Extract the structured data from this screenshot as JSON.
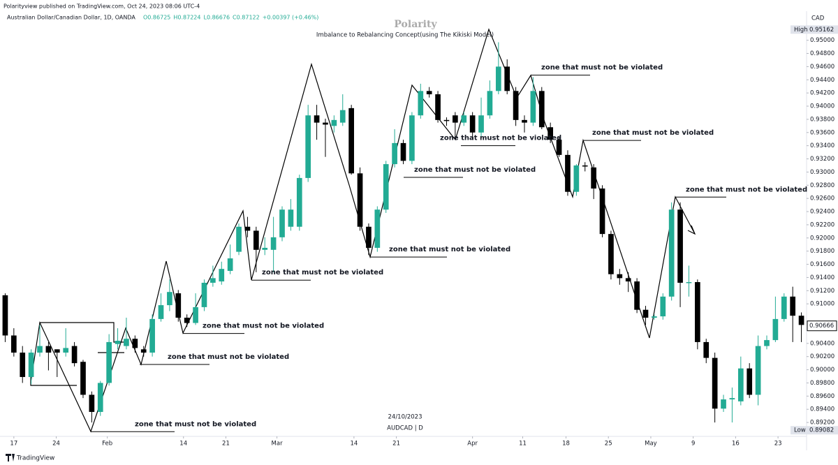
{
  "header": {
    "published": "Polarityview published on TradingView.com, Oct 24, 2023 08:06 UTC-4",
    "symbol": "Australian Dollar/Canadian Dollar, 1D, OANDA",
    "ohlc_readout": [
      "O0.86725",
      "H0.87224",
      "L0.86676",
      "C0.87122",
      "+0.00397 (+0.46%)"
    ]
  },
  "footer": {
    "brand": "TradingView"
  },
  "chart_data": {
    "type": "candlestick",
    "title": "Polarity",
    "subtitle": "Imbalance to Rebalancing Concept(using The Kikiski Model)",
    "date_label": "24/10/2023",
    "symbol_label": "AUDCAD | D",
    "currency": "CAD",
    "up_color": "#22ab94",
    "down_color": "#000000",
    "xlim": [
      -0.6,
      92.6
    ],
    "ylim": [
      0.8883,
      0.9542
    ],
    "xticks": [
      {
        "value": 1,
        "label": "17"
      },
      {
        "value": 5.9,
        "label": "24"
      },
      {
        "value": 11.8,
        "label": "Feb"
      },
      {
        "value": 20.6,
        "label": "14"
      },
      {
        "value": 25.5,
        "label": "21"
      },
      {
        "value": 31.4,
        "label": "Mar"
      },
      {
        "value": 40.3,
        "label": "14"
      },
      {
        "value": 45.2,
        "label": "21"
      },
      {
        "value": 54,
        "label": "Apr"
      },
      {
        "value": 59.8,
        "label": "11"
      },
      {
        "value": 64.8,
        "label": "18"
      },
      {
        "value": 69.7,
        "label": "25"
      },
      {
        "value": 74.6,
        "label": "May"
      },
      {
        "value": 79.5,
        "label": "9"
      },
      {
        "value": 84.4,
        "label": "16"
      },
      {
        "value": 89.3,
        "label": "23"
      }
    ],
    "yticks": [
      {
        "value": 0.892,
        "label": "0.89200"
      },
      {
        "value": 0.894,
        "label": "0.89400"
      },
      {
        "value": 0.896,
        "label": "0.89600"
      },
      {
        "value": 0.898,
        "label": "0.89800"
      },
      {
        "value": 0.9,
        "label": "0.90000"
      },
      {
        "value": 0.902,
        "label": "0.90200"
      },
      {
        "value": 0.904,
        "label": "0.90400"
      },
      {
        "value": 0.91,
        "label": "0.91000"
      },
      {
        "value": 0.912,
        "label": "0.91200"
      },
      {
        "value": 0.914,
        "label": "0.91400"
      },
      {
        "value": 0.916,
        "label": "0.91600"
      },
      {
        "value": 0.918,
        "label": "0.91800"
      },
      {
        "value": 0.92,
        "label": "0.92000"
      },
      {
        "value": 0.922,
        "label": "0.92200"
      },
      {
        "value": 0.924,
        "label": "0.92400"
      },
      {
        "value": 0.926,
        "label": "0.92600"
      },
      {
        "value": 0.928,
        "label": "0.92800"
      },
      {
        "value": 0.93,
        "label": "0.93000"
      },
      {
        "value": 0.932,
        "label": "0.93200"
      },
      {
        "value": 0.934,
        "label": "0.93400"
      },
      {
        "value": 0.936,
        "label": "0.93600"
      },
      {
        "value": 0.938,
        "label": "0.93800"
      },
      {
        "value": 0.94,
        "label": "0.94000"
      },
      {
        "value": 0.942,
        "label": "0.94200"
      },
      {
        "value": 0.944,
        "label": "0.94400"
      },
      {
        "value": 0.946,
        "label": "0.94600"
      },
      {
        "value": 0.948,
        "label": "0.94800"
      },
      {
        "value": 0.95,
        "label": "0.95000"
      }
    ],
    "high": {
      "label": "High",
      "value": 0.95162
    },
    "low": {
      "label": "Low",
      "value": 0.89082
    },
    "last": 0.90666,
    "grid": false,
    "ohlc": [
      [
        0.9113,
        0.9116,
        0.9042,
        0.9052
      ],
      [
        0.9052,
        0.9063,
        0.902,
        0.9026
      ],
      [
        0.9026,
        0.9036,
        0.898,
        0.8989
      ],
      [
        0.8989,
        0.9031,
        0.8978,
        0.9026
      ],
      [
        0.9026,
        0.9068,
        0.902,
        0.9036
      ],
      [
        0.9036,
        0.9042,
        0.8999,
        0.9026
      ],
      [
        0.9031,
        0.9031,
        0.8989,
        0.9026
      ],
      [
        0.9026,
        0.9063,
        0.902,
        0.9033
      ],
      [
        0.9036,
        0.9042,
        0.9005,
        0.901
      ],
      [
        0.9012,
        0.9015,
        0.8957,
        0.8962
      ],
      [
        0.8962,
        0.8967,
        0.892,
        0.8936
      ],
      [
        0.8936,
        0.8983,
        0.893,
        0.898
      ],
      [
        0.898,
        0.9054,
        0.8976,
        0.9042
      ],
      [
        0.9039,
        0.9063,
        0.9031,
        0.9044
      ],
      [
        0.9036,
        0.9079,
        0.9031,
        0.9047
      ],
      [
        0.9047,
        0.9052,
        0.9026,
        0.9033
      ],
      [
        0.9031,
        0.9036,
        0.902,
        0.9026
      ],
      [
        0.9026,
        0.9084,
        0.902,
        0.9077
      ],
      [
        0.9077,
        0.9116,
        0.9073,
        0.9098
      ],
      [
        0.9098,
        0.9137,
        0.9089,
        0.9118
      ],
      [
        0.9116,
        0.9121,
        0.9073,
        0.9079
      ],
      [
        0.9079,
        0.9084,
        0.9065,
        0.9071
      ],
      [
        0.9071,
        0.9116,
        0.9068,
        0.9095
      ],
      [
        0.9095,
        0.9137,
        0.9089,
        0.9132
      ],
      [
        0.9132,
        0.9158,
        0.9126,
        0.9139
      ],
      [
        0.9134,
        0.9164,
        0.9129,
        0.9153
      ],
      [
        0.915,
        0.919,
        0.9145,
        0.9169
      ],
      [
        0.9179,
        0.9222,
        0.9174,
        0.9217
      ],
      [
        0.9217,
        0.9232,
        0.9201,
        0.9211
      ],
      [
        0.9211,
        0.9217,
        0.9148,
        0.9182
      ],
      [
        0.9182,
        0.9201,
        0.9174,
        0.9185
      ],
      [
        0.9182,
        0.9232,
        0.9148,
        0.9201
      ],
      [
        0.9201,
        0.9248,
        0.9195,
        0.9243
      ],
      [
        0.9217,
        0.9259,
        0.9211,
        0.9243
      ],
      [
        0.9217,
        0.9296,
        0.9211,
        0.9291
      ],
      [
        0.9291,
        0.9402,
        0.9285,
        0.9386
      ],
      [
        0.9386,
        0.9402,
        0.9349,
        0.9375
      ],
      [
        0.9375,
        0.9381,
        0.9323,
        0.9372
      ],
      [
        0.937,
        0.9386,
        0.936,
        0.9379
      ],
      [
        0.9375,
        0.9418,
        0.937,
        0.9394
      ],
      [
        0.9397,
        0.9402,
        0.9296,
        0.9298
      ],
      [
        0.9298,
        0.9307,
        0.9211,
        0.9217
      ],
      [
        0.9217,
        0.9222,
        0.9174,
        0.9185
      ],
      [
        0.9185,
        0.9248,
        0.9179,
        0.9243
      ],
      [
        0.9243,
        0.9317,
        0.9238,
        0.9312
      ],
      [
        0.9312,
        0.9365,
        0.9307,
        0.9344
      ],
      [
        0.9344,
        0.9349,
        0.9312,
        0.9317
      ],
      [
        0.9317,
        0.9391,
        0.9312,
        0.9386
      ],
      [
        0.9386,
        0.9434,
        0.9381,
        0.9423
      ],
      [
        0.9423,
        0.9429,
        0.9413,
        0.9418
      ],
      [
        0.9418,
        0.9423,
        0.9375,
        0.9379
      ],
      [
        0.9379,
        0.9383,
        0.937,
        0.9379
      ],
      [
        0.9386,
        0.9391,
        0.9354,
        0.9375
      ],
      [
        0.9375,
        0.9391,
        0.937,
        0.9386
      ],
      [
        0.9386,
        0.9391,
        0.9349,
        0.936
      ],
      [
        0.936,
        0.9413,
        0.9354,
        0.9386
      ],
      [
        0.9386,
        0.9439,
        0.9381,
        0.9423
      ],
      [
        0.9423,
        0.9497,
        0.9418,
        0.946
      ],
      [
        0.946,
        0.9471,
        0.9418,
        0.9423
      ],
      [
        0.9423,
        0.9429,
        0.937,
        0.9379
      ],
      [
        0.9379,
        0.9386,
        0.936,
        0.9375
      ],
      [
        0.9375,
        0.9444,
        0.937,
        0.9423
      ],
      [
        0.9423,
        0.9429,
        0.9365,
        0.9368
      ],
      [
        0.9368,
        0.9375,
        0.9344,
        0.9349
      ],
      [
        0.9349,
        0.9354,
        0.9323,
        0.9326
      ],
      [
        0.9326,
        0.9333,
        0.9264,
        0.927
      ],
      [
        0.927,
        0.9312,
        0.9264,
        0.931
      ],
      [
        0.931,
        0.9315,
        0.9301,
        0.9309
      ],
      [
        0.9307,
        0.9312,
        0.9259,
        0.9275
      ],
      [
        0.9275,
        0.928,
        0.9201,
        0.9206
      ],
      [
        0.9206,
        0.9211,
        0.9137,
        0.9145
      ],
      [
        0.9145,
        0.9153,
        0.9129,
        0.9139
      ],
      [
        0.9139,
        0.9148,
        0.9118,
        0.9134
      ],
      [
        0.9134,
        0.9139,
        0.9086,
        0.9091
      ],
      [
        0.9091,
        0.9097,
        0.9068,
        0.9079
      ],
      [
        0.9079,
        0.9084,
        0.9076,
        0.9081
      ],
      [
        0.9081,
        0.9116,
        0.9076,
        0.9111
      ],
      [
        0.9111,
        0.9254,
        0.9105,
        0.9243
      ],
      [
        0.9243,
        0.9254,
        0.9095,
        0.9132
      ],
      [
        0.9132,
        0.9158,
        0.9111,
        0.9133
      ],
      [
        0.9133,
        0.9137,
        0.9031,
        0.9042
      ],
      [
        0.9042,
        0.9047,
        0.901,
        0.9018
      ],
      [
        0.9018,
        0.9026,
        0.892,
        0.8941
      ],
      [
        0.8941,
        0.8962,
        0.8936,
        0.8955
      ],
      [
        0.8955,
        0.8973,
        0.892,
        0.8957
      ],
      [
        0.8952,
        0.902,
        0.8946,
        0.9002
      ],
      [
        0.9002,
        0.901,
        0.8957,
        0.8962
      ],
      [
        0.8962,
        0.9052,
        0.8946,
        0.9036
      ],
      [
        0.9036,
        0.9052,
        0.9031,
        0.9045
      ],
      [
        0.9045,
        0.9111,
        0.9042,
        0.9077
      ],
      [
        0.9077,
        0.9116,
        0.9073,
        0.9111
      ],
      [
        0.9111,
        0.9126,
        0.9042,
        0.9082
      ],
      [
        0.9082,
        0.9087,
        0.9042,
        0.9068
      ]
    ],
    "annotations": [
      {
        "text": "zone that must not be violated",
        "value": 0.8906
      },
      {
        "text": "zone that must not be violated",
        "value": 0.9008
      },
      {
        "text": "zone that must not be violated",
        "value": 0.9055
      },
      {
        "text": "zone that must not be violated",
        "value": 0.9136
      },
      {
        "text": "zone that must not be violated",
        "value": 0.9171
      },
      {
        "text": "zone that must not be violated",
        "value": 0.9292
      },
      {
        "text": "zone that must not be violated",
        "value": 0.934
      },
      {
        "text": "zone that must not be violated",
        "value": 0.9447
      },
      {
        "text": "zone that must not be violated",
        "value": 0.9348
      },
      {
        "text": "zone that must not be violated",
        "value": 0.9262
      }
    ]
  }
}
